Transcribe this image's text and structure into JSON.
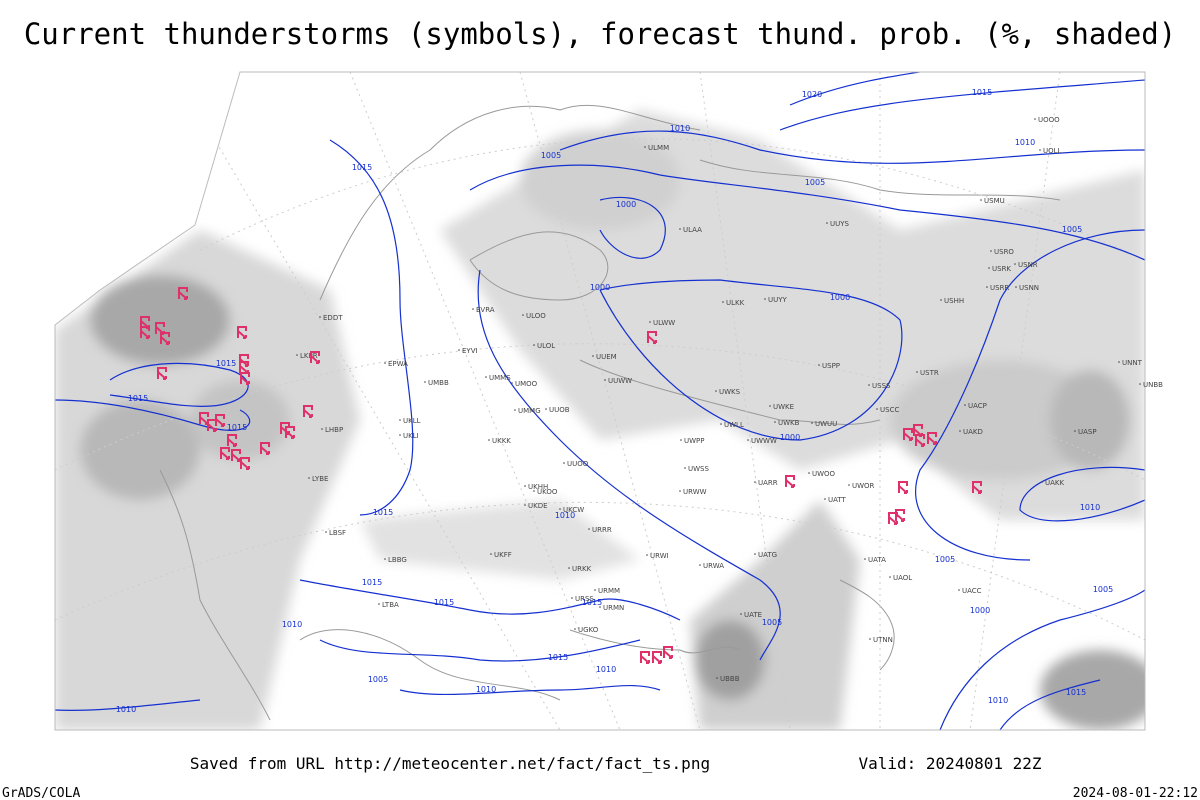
{
  "title": "Current thunderstorms (symbols), forecast thund. prob. (%, shaded)",
  "footer": {
    "source": "Saved from URL http://meteocenter.net/fact/fact_ts.png",
    "valid": "Valid: 20240801 22Z",
    "software": "GrADS/COLA",
    "timestamp": "2024-08-01-22:12"
  },
  "isobar_labels": [
    "1020",
    "1015",
    "1010",
    "1010",
    "1005",
    "1005",
    "1005",
    "1000",
    "1000",
    "1000",
    "1000",
    "1015",
    "1015",
    "1015",
    "1015",
    "1015",
    "1010",
    "1015",
    "1015",
    "1015",
    "1010",
    "1015",
    "1010",
    "1010",
    "1005",
    "1010",
    "1005",
    "1010",
    "1000",
    "1005",
    "1005",
    "1015",
    "1010"
  ],
  "stations": [
    "EDDT",
    "EPWA",
    "EVRA",
    "ULOO",
    "ULOL",
    "UUEM",
    "UUWW",
    "ULWW",
    "ULKK",
    "UUYY",
    "ULAA",
    "ULMM",
    "UUYS",
    "USMU",
    "USRO",
    "USRK",
    "USNR",
    "USRR",
    "USNN",
    "USHH",
    "USPP",
    "USTR",
    "USSS",
    "USCC",
    "UWKS",
    "UWKE",
    "UWKB",
    "UWUU",
    "UWWW",
    "UWLL",
    "UWPP",
    "UWOO",
    "UWOR",
    "UATT",
    "UARR",
    "UWSS",
    "URWW",
    "UUOO",
    "UUOB",
    "UMMG",
    "UKKK",
    "UKHH",
    "UKOO",
    "UKDE",
    "UKCW",
    "URRR",
    "UKFF",
    "URKK",
    "URMM",
    "URMN",
    "URWI",
    "URWA",
    "URSS",
    "UGKO",
    "UBBB",
    "UATG",
    "UATE",
    "UATA",
    "UAOL",
    "UACC",
    "UTNN",
    "UAKK",
    "UASP",
    "UACP",
    "UAKD",
    "EYVI",
    "UMMS",
    "UMBB",
    "UKLL",
    "UKLI",
    "UMOO",
    "LKPR",
    "LHBP",
    "LYBE",
    "LBSF",
    "LBBG",
    "LTBA",
    "UOOO",
    "UOLL",
    "UNBB",
    "UNNT"
  ]
}
